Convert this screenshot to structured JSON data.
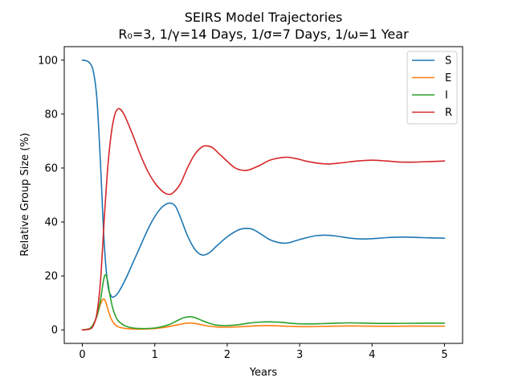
{
  "chart_data": {
    "type": "line",
    "title_line1": "SEIRS Model Trajectories",
    "title_line2": "R₀=3, 1/γ=14 Days, 1/σ=7 Days, 1/ω=1 Year",
    "xlabel": "Years",
    "ylabel": "Relative Group Size (%)",
    "xlim": [
      -0.25,
      5.25
    ],
    "ylim": [
      -5,
      105
    ],
    "xticks": [
      0,
      1,
      2,
      3,
      4,
      5
    ],
    "yticks": [
      0,
      20,
      40,
      60,
      80,
      100
    ],
    "grid": false,
    "legend_position": "top-right",
    "series": [
      {
        "name": "S",
        "color": "#1f77b4",
        "points": [
          [
            0,
            100
          ],
          [
            0.05,
            99.8
          ],
          [
            0.1,
            99
          ],
          [
            0.15,
            96
          ],
          [
            0.2,
            86
          ],
          [
            0.25,
            62
          ],
          [
            0.3,
            33
          ],
          [
            0.35,
            17
          ],
          [
            0.4,
            12.5
          ],
          [
            0.45,
            12.5
          ],
          [
            0.5,
            14
          ],
          [
            0.6,
            19
          ],
          [
            0.7,
            25
          ],
          [
            0.8,
            31
          ],
          [
            0.9,
            37
          ],
          [
            1.0,
            42
          ],
          [
            1.1,
            45.5
          ],
          [
            1.2,
            47
          ],
          [
            1.28,
            46
          ],
          [
            1.35,
            42
          ],
          [
            1.45,
            35
          ],
          [
            1.55,
            30
          ],
          [
            1.65,
            27.8
          ],
          [
            1.75,
            28.5
          ],
          [
            1.85,
            31
          ],
          [
            2.0,
            34.5
          ],
          [
            2.15,
            37
          ],
          [
            2.25,
            37.6
          ],
          [
            2.35,
            37.3
          ],
          [
            2.45,
            35.8
          ],
          [
            2.6,
            33.3
          ],
          [
            2.75,
            32.2
          ],
          [
            2.85,
            32.3
          ],
          [
            3.0,
            33.5
          ],
          [
            3.2,
            34.8
          ],
          [
            3.35,
            35.1
          ],
          [
            3.5,
            34.8
          ],
          [
            3.7,
            34
          ],
          [
            3.85,
            33.7
          ],
          [
            4.0,
            33.8
          ],
          [
            4.2,
            34.2
          ],
          [
            4.4,
            34.4
          ],
          [
            4.6,
            34.3
          ],
          [
            4.8,
            34.1
          ],
          [
            5.0,
            34
          ]
        ]
      },
      {
        "name": "E",
        "color": "#ff7f0e",
        "points": [
          [
            0,
            0
          ],
          [
            0.1,
            0.5
          ],
          [
            0.15,
            2
          ],
          [
            0.2,
            5
          ],
          [
            0.25,
            9.5
          ],
          [
            0.29,
            11.4
          ],
          [
            0.32,
            10.5
          ],
          [
            0.36,
            7
          ],
          [
            0.4,
            4
          ],
          [
            0.45,
            2
          ],
          [
            0.5,
            1.1
          ],
          [
            0.6,
            0.5
          ],
          [
            0.8,
            0.3
          ],
          [
            1.0,
            0.5
          ],
          [
            1.15,
            1
          ],
          [
            1.3,
            1.8
          ],
          [
            1.45,
            2.5
          ],
          [
            1.55,
            2.4
          ],
          [
            1.7,
            1.6
          ],
          [
            1.85,
            1.1
          ],
          [
            2.0,
            1
          ],
          [
            2.2,
            1.2
          ],
          [
            2.4,
            1.5
          ],
          [
            2.55,
            1.6
          ],
          [
            2.7,
            1.5
          ],
          [
            2.9,
            1.3
          ],
          [
            3.1,
            1.2
          ],
          [
            3.3,
            1.3
          ],
          [
            3.5,
            1.4
          ],
          [
            3.7,
            1.45
          ],
          [
            3.9,
            1.4
          ],
          [
            4.1,
            1.35
          ],
          [
            4.3,
            1.35
          ],
          [
            4.5,
            1.4
          ],
          [
            4.8,
            1.4
          ],
          [
            5.0,
            1.4
          ]
        ]
      },
      {
        "name": "I",
        "color": "#2ca02c",
        "points": [
          [
            0,
            0
          ],
          [
            0.1,
            0.5
          ],
          [
            0.15,
            2
          ],
          [
            0.2,
            5
          ],
          [
            0.25,
            11
          ],
          [
            0.29,
            18
          ],
          [
            0.32,
            20.5
          ],
          [
            0.35,
            18
          ],
          [
            0.38,
            13
          ],
          [
            0.42,
            8
          ],
          [
            0.46,
            5
          ],
          [
            0.5,
            3.2
          ],
          [
            0.6,
            1.4
          ],
          [
            0.7,
            0.7
          ],
          [
            0.8,
            0.5
          ],
          [
            0.9,
            0.5
          ],
          [
            1.0,
            0.7
          ],
          [
            1.1,
            1.2
          ],
          [
            1.2,
            2
          ],
          [
            1.3,
            3.3
          ],
          [
            1.4,
            4.5
          ],
          [
            1.48,
            4.9
          ],
          [
            1.55,
            4.6
          ],
          [
            1.65,
            3.5
          ],
          [
            1.75,
            2.5
          ],
          [
            1.85,
            1.8
          ],
          [
            2.0,
            1.6
          ],
          [
            2.15,
            1.9
          ],
          [
            2.3,
            2.5
          ],
          [
            2.45,
            2.9
          ],
          [
            2.6,
            3
          ],
          [
            2.75,
            2.8
          ],
          [
            2.9,
            2.4
          ],
          [
            3.1,
            2.2
          ],
          [
            3.3,
            2.3
          ],
          [
            3.5,
            2.5
          ],
          [
            3.7,
            2.6
          ],
          [
            3.9,
            2.5
          ],
          [
            4.1,
            2.4
          ],
          [
            4.3,
            2.4
          ],
          [
            4.5,
            2.45
          ],
          [
            4.8,
            2.5
          ],
          [
            5.0,
            2.5
          ]
        ]
      },
      {
        "name": "R",
        "color": "#d62728",
        "points": [
          [
            0,
            0
          ],
          [
            0.1,
            0.3
          ],
          [
            0.15,
            1.5
          ],
          [
            0.2,
            6
          ],
          [
            0.25,
            18
          ],
          [
            0.3,
            40
          ],
          [
            0.35,
            60
          ],
          [
            0.4,
            73
          ],
          [
            0.45,
            80
          ],
          [
            0.5,
            82
          ],
          [
            0.55,
            81
          ],
          [
            0.6,
            78.5
          ],
          [
            0.7,
            72
          ],
          [
            0.8,
            65
          ],
          [
            0.9,
            59
          ],
          [
            1.0,
            54.5
          ],
          [
            1.1,
            51.5
          ],
          [
            1.18,
            50.3
          ],
          [
            1.25,
            50.8
          ],
          [
            1.35,
            54
          ],
          [
            1.45,
            60
          ],
          [
            1.55,
            65
          ],
          [
            1.65,
            67.8
          ],
          [
            1.72,
            68.2
          ],
          [
            1.8,
            67.5
          ],
          [
            1.9,
            65
          ],
          [
            2.0,
            62.5
          ],
          [
            2.1,
            60.2
          ],
          [
            2.2,
            59.2
          ],
          [
            2.3,
            59.3
          ],
          [
            2.45,
            61
          ],
          [
            2.6,
            63
          ],
          [
            2.8,
            64
          ],
          [
            2.95,
            63.5
          ],
          [
            3.1,
            62.5
          ],
          [
            3.25,
            61.8
          ],
          [
            3.4,
            61.5
          ],
          [
            3.6,
            62
          ],
          [
            3.8,
            62.6
          ],
          [
            4.0,
            62.9
          ],
          [
            4.2,
            62.6
          ],
          [
            4.4,
            62.2
          ],
          [
            4.6,
            62.2
          ],
          [
            4.8,
            62.4
          ],
          [
            5.0,
            62.6
          ]
        ]
      }
    ]
  }
}
